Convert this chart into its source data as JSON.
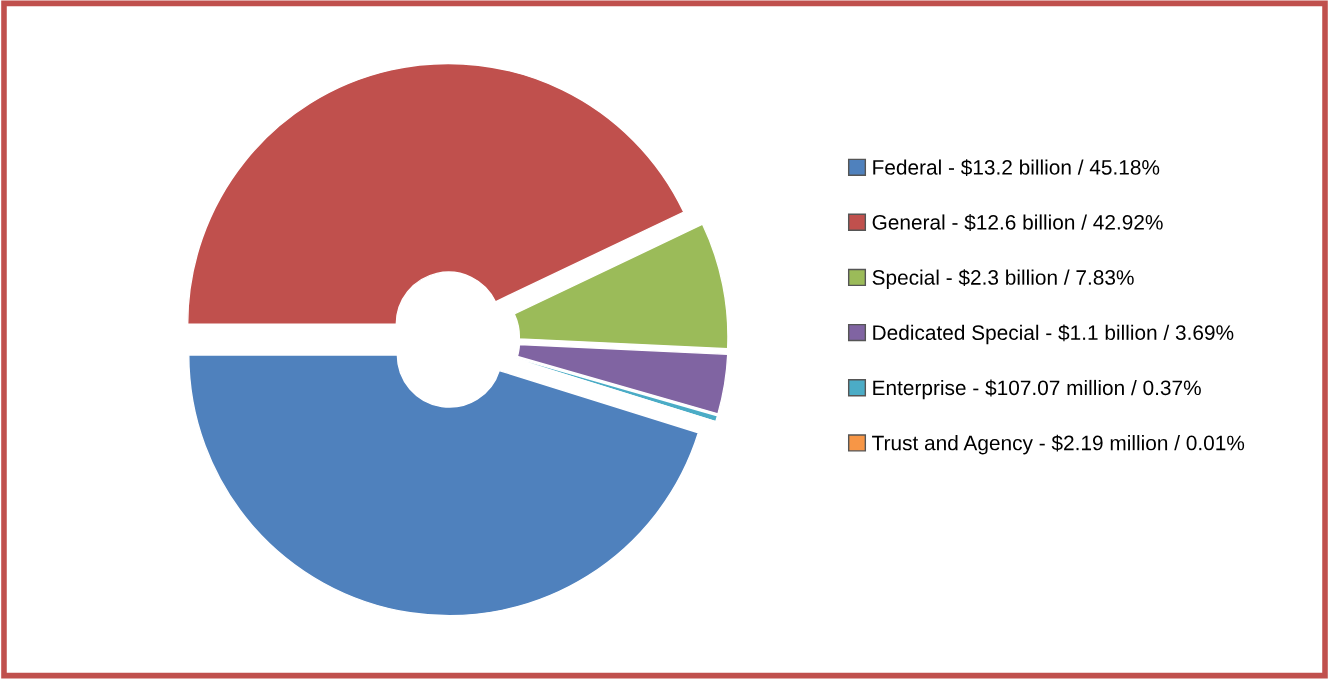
{
  "chart_data": {
    "type": "donut",
    "categories": [
      "Federal - $13.2 billion / 45.18%",
      "General - $12.6 billion / 42.92%",
      "Special - $2.3 billion / 7.83%",
      "Dedicated Special - $1.1 billion / 3.69%",
      "Enterprise - $107.07 million / 0.37%",
      "Trust and Agency - $2.19 million / 0.01%"
    ],
    "values": [
      45.18,
      42.92,
      7.83,
      3.69,
      0.37,
      0.01
    ],
    "colors": [
      "#4f81bd",
      "#c0504d",
      "#9bbb59",
      "#8064a2",
      "#4bacc6",
      "#f79646"
    ],
    "legend": "right"
  }
}
